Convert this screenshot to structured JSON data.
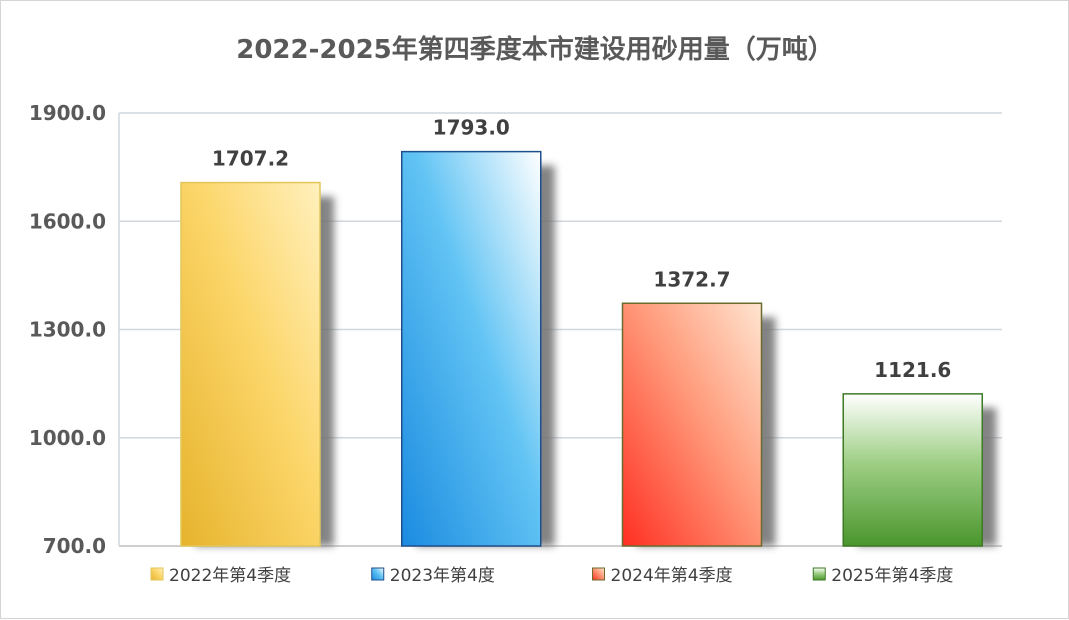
{
  "chart_data": {
    "type": "bar",
    "title": "2022-2025年第四季度本市建设用砂用量（万吨）",
    "categories": [
      "2022年第4季度",
      "2023年第4度",
      "2024年第4季度",
      "2025年第4季度"
    ],
    "values": [
      1707.2,
      1793.0,
      1372.7,
      1121.6
    ],
    "value_labels": [
      "1707.2",
      "1793.0",
      "1372.7",
      "1121.6"
    ],
    "ylim": [
      700,
      1900
    ],
    "yticks": [
      700,
      1000,
      1300,
      1600,
      1900
    ],
    "ytick_labels": [
      "700.0",
      "1000.0",
      "1300.0",
      "1600.0",
      "1900.0"
    ],
    "grid": true,
    "colors": [
      {
        "name": "gold",
        "fill_start": "#e8b730",
        "fill_end": "#fff0b8",
        "stroke": "#e2c65a"
      },
      {
        "name": "blue",
        "fill_start": "#1f8fe3",
        "fill_end": "#ffffff",
        "stroke": "#1f4e8c"
      },
      {
        "name": "red",
        "fill_start": "#ff3b2a",
        "fill_end": "#ffe2cc",
        "stroke": "#6b6b2e"
      },
      {
        "name": "green",
        "fill_start": "#ffffff",
        "fill_end": "#4e9a2f",
        "stroke": "#3d7a26"
      }
    ]
  }
}
